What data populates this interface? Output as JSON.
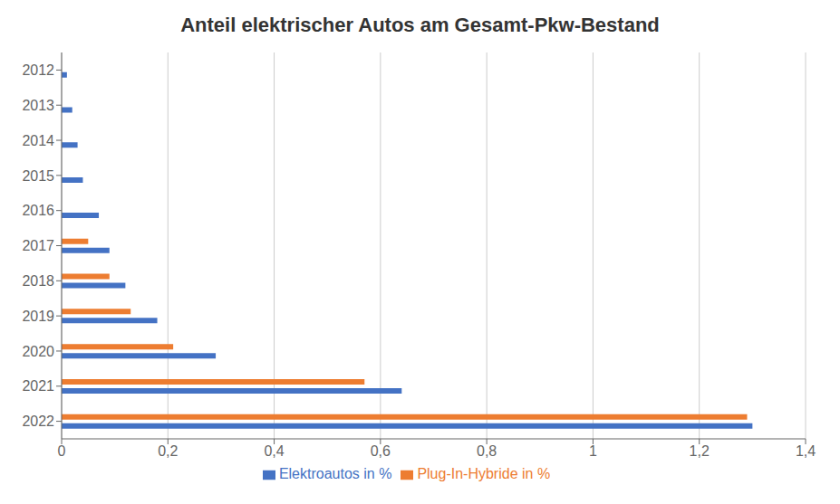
{
  "chart_data": {
    "type": "bar",
    "orientation": "horizontal",
    "title": "Anteil elektrischer Autos am Gesamt-Pkw-Bestand",
    "categories": [
      "2012",
      "2013",
      "2014",
      "2015",
      "2016",
      "2017",
      "2018",
      "2019",
      "2020",
      "2021",
      "2022"
    ],
    "series": [
      {
        "name": "Plug-In-Hybride in %",
        "color": "#ED7D31",
        "values": [
          0.0,
          0.0,
          0.0,
          0.0,
          0.0,
          0.05,
          0.09,
          0.13,
          0.21,
          0.57,
          1.29
        ]
      },
      {
        "name": "Elektroautos in %",
        "color": "#4472C4",
        "values": [
          0.01,
          0.02,
          0.03,
          0.04,
          0.07,
          0.09,
          0.12,
          0.18,
          0.29,
          0.64,
          1.3
        ]
      }
    ],
    "xlim": [
      0,
      1.4
    ],
    "xticks": [
      0,
      {
        "value": 0.2,
        "label": "0,2"
      },
      {
        "value": 0.4,
        "label": "0,4"
      },
      {
        "value": 0.6,
        "label": "0,6"
      },
      {
        "value": 0.8,
        "label": "0,8"
      },
      1,
      {
        "value": 1.2,
        "label": "1,2"
      },
      {
        "value": 1.4,
        "label": "1,4"
      }
    ],
    "grid": true,
    "legend": "bottom"
  }
}
